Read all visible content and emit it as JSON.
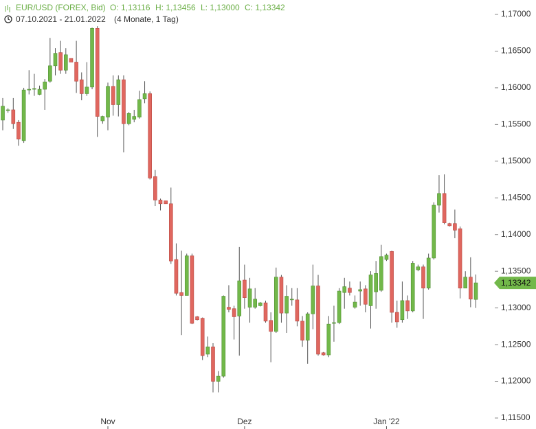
{
  "header": {
    "instrument": "EUR/USD (FOREX, Bid)",
    "open": "O: 1,13116",
    "high": "H: 1,13456",
    "low": "L: 1,13000",
    "close": "C: 1,13342",
    "range": "07.10.2021 - 21.01.2022",
    "duration": "(4 Monate, 1 Tag)"
  },
  "chart_data": {
    "type": "candlestick",
    "categories": [
      null,
      null,
      null,
      null,
      null,
      null,
      null,
      null,
      null,
      null,
      null,
      null,
      null,
      null,
      null,
      null,
      null,
      null,
      null,
      null,
      "Nov",
      null,
      null,
      null,
      null,
      null,
      null,
      null,
      null,
      null,
      null,
      null,
      null,
      null,
      null,
      null,
      null,
      null,
      null,
      null,
      null,
      null,
      null,
      null,
      null,
      null,
      "Dez",
      null,
      null,
      null,
      null,
      null,
      null,
      null,
      null,
      null,
      null,
      null,
      null,
      null,
      null,
      null,
      null,
      null,
      null,
      null,
      null,
      null,
      null,
      null,
      null,
      null,
      null,
      "Jan '22",
      null,
      null,
      null,
      null,
      null,
      null,
      null,
      null,
      null,
      null,
      null,
      null,
      null,
      null,
      null,
      null,
      null
    ],
    "open": [
      1.1556,
      1.1569,
      1.157,
      1.1553,
      1.1528,
      1.1597,
      1.1598,
      1.1591,
      1.1598,
      1.1609,
      1.163,
      1.1648,
      1.1624,
      1.164,
      1.1635,
      1.1611,
      1.1592,
      1.1601,
      1.1681,
      1.1555,
      1.156,
      1.1602,
      1.1577,
      1.1611,
      1.1551,
      1.1557,
      1.156,
      1.1585,
      1.1592,
      1.1479,
      1.1447,
      1.1446,
      1.1442,
      1.1366,
      1.1321,
      1.1317,
      1.1371,
      1.1288,
      1.1286,
      1.1237,
      1.1247,
      1.12,
      1.1207,
      1.1301,
      1.1299,
      1.1289,
      1.1338,
      1.1301,
      1.1301,
      1.1303,
      1.1307,
      1.1283,
      1.1268,
      1.1342,
      1.1293,
      1.1311,
      1.1311,
      1.1282,
      1.1256,
      1.1292,
      1.133,
      1.1239,
      1.1236,
      1.1279,
      1.128,
      1.1321,
      1.1327,
      1.1301,
      1.1323,
      1.1326,
      1.1303,
      1.1322,
      1.1324,
      1.1366,
      1.1377,
      1.1294,
      1.1284,
      1.131,
      1.1296,
      1.1352,
      1.1356,
      1.1327,
      1.1368,
      1.144,
      1.1456,
      1.1415,
      1.1415,
      1.1408,
      1.1327,
      1.1342,
      1.13116
    ],
    "high": [
      1.1586,
      1.1572,
      1.1586,
      1.1556,
      1.16,
      1.1624,
      1.1619,
      1.1603,
      1.1612,
      1.1668,
      1.1654,
      1.1664,
      1.1654,
      1.164,
      1.1664,
      1.1621,
      1.1635,
      1.1682,
      1.1684,
      1.1562,
      1.1607,
      1.1617,
      1.1617,
      1.1617,
      1.1567,
      1.157,
      1.1596,
      1.1609,
      1.1595,
      1.1488,
      1.1449,
      1.1446,
      1.1464,
      1.1388,
      1.1378,
      1.1374,
      1.1374,
      1.1289,
      1.1287,
      1.1261,
      1.1252,
      1.1214,
      1.1317,
      1.1331,
      1.1303,
      1.1383,
      1.1359,
      1.1341,
      1.1327,
      1.1308,
      1.131,
      1.1294,
      1.1355,
      1.1345,
      1.1331,
      1.1327,
      1.1327,
      1.1289,
      1.1294,
      1.1359,
      1.1345,
      1.124,
      1.1289,
      1.1303,
      1.1327,
      1.1341,
      1.1336,
      1.1317,
      1.1336,
      1.1331,
      1.135,
      1.1364,
      1.1386,
      1.1374,
      1.1378,
      1.131,
      1.1336,
      1.1317,
      1.1364,
      1.1359,
      1.1359,
      1.1374,
      1.1444,
      1.1481,
      1.1482,
      1.1416,
      1.1434,
      1.1411,
      1.135,
      1.1369,
      1.13456
    ],
    "low": [
      1.1542,
      1.1566,
      1.1544,
      1.1521,
      1.1525,
      1.1591,
      1.1589,
      1.159,
      1.157,
      1.1607,
      1.1617,
      1.1619,
      1.1619,
      1.1635,
      1.1593,
      1.1583,
      1.1589,
      1.1598,
      1.1533,
      1.1551,
      1.1542,
      1.1562,
      1.1561,
      1.1512,
      1.1549,
      1.1553,
      1.1558,
      1.1579,
      1.1475,
      1.1439,
      1.1433,
      1.1442,
      1.136,
      1.1317,
      1.1263,
      1.1317,
      1.1278,
      1.1283,
      1.1229,
      1.1233,
      1.1185,
      1.1185,
      1.1205,
      1.1294,
      1.1257,
      1.1235,
      1.1299,
      1.128,
      1.1299,
      1.1302,
      1.128,
      1.1226,
      1.1266,
      1.128,
      1.1266,
      1.1303,
      1.1275,
      1.1247,
      1.1224,
      1.1271,
      1.1235,
      1.1235,
      1.1233,
      1.1254,
      1.1278,
      1.1299,
      1.1317,
      1.1299,
      1.1303,
      1.1294,
      1.1272,
      1.1299,
      1.1322,
      1.1364,
      1.128,
      1.1273,
      1.128,
      1.1285,
      1.1294,
      1.135,
      1.1285,
      1.1325,
      1.1366,
      1.143,
      1.1414,
      1.1411,
      1.1395,
      1.1313,
      1.1327,
      1.1301,
      1.13
    ],
    "close": [
      1.1575,
      1.157,
      1.1551,
      1.153,
      1.1597,
      1.1598,
      1.1599,
      1.1598,
      1.1608,
      1.163,
      1.1647,
      1.1624,
      1.1645,
      1.1635,
      1.1609,
      1.1592,
      1.1601,
      1.1681,
      1.1561,
      1.1561,
      1.1602,
      1.1577,
      1.1611,
      1.1551,
      1.1565,
      1.1561,
      1.1584,
      1.1592,
      1.1477,
      1.1447,
      1.1442,
      1.1442,
      1.1364,
      1.132,
      1.1317,
      1.1371,
      1.1279,
      1.1284,
      1.1235,
      1.1247,
      1.12,
      1.1207,
      1.1316,
      1.1298,
      1.1288,
      1.1337,
      1.1314,
      1.1326,
      1.1312,
      1.1307,
      1.1282,
      1.1268,
      1.1342,
      1.1293,
      1.1316,
      1.1312,
      1.1282,
      1.1256,
      1.1292,
      1.133,
      1.1237,
      1.1236,
      1.1278,
      1.128,
      1.1323,
      1.1329,
      1.1321,
      1.1308,
      1.1325,
      1.1305,
      1.1345,
      1.1347,
      1.137,
      1.1372,
      1.1294,
      1.1281,
      1.131,
      1.1296,
      1.1361,
      1.1356,
      1.1327,
      1.1368,
      1.144,
      1.1456,
      1.1416,
      1.1412,
      1.1406,
      1.1327,
      1.1342,
      1.1312,
      1.13342
    ],
    "up_color": "#72b84a",
    "down_color": "#e0675f",
    "wick_color": "#555555",
    "last_price_label": "1,13342",
    "ylim": [
      1.115,
      1.17
    ],
    "yticks": [
      {
        "value": 1.17,
        "label": "1,17000"
      },
      {
        "value": 1.165,
        "label": "1,16500"
      },
      {
        "value": 1.16,
        "label": "1,16000"
      },
      {
        "value": 1.155,
        "label": "1,15500"
      },
      {
        "value": 1.15,
        "label": "1,15000"
      },
      {
        "value": 1.145,
        "label": "1,14500"
      },
      {
        "value": 1.14,
        "label": "1,14000"
      },
      {
        "value": 1.135,
        "label": "1,13500"
      },
      {
        "value": 1.13,
        "label": "1,13000"
      },
      {
        "value": 1.125,
        "label": "1,12500"
      },
      {
        "value": 1.12,
        "label": "1,12000"
      },
      {
        "value": 1.115,
        "label": "1,11500"
      }
    ]
  }
}
